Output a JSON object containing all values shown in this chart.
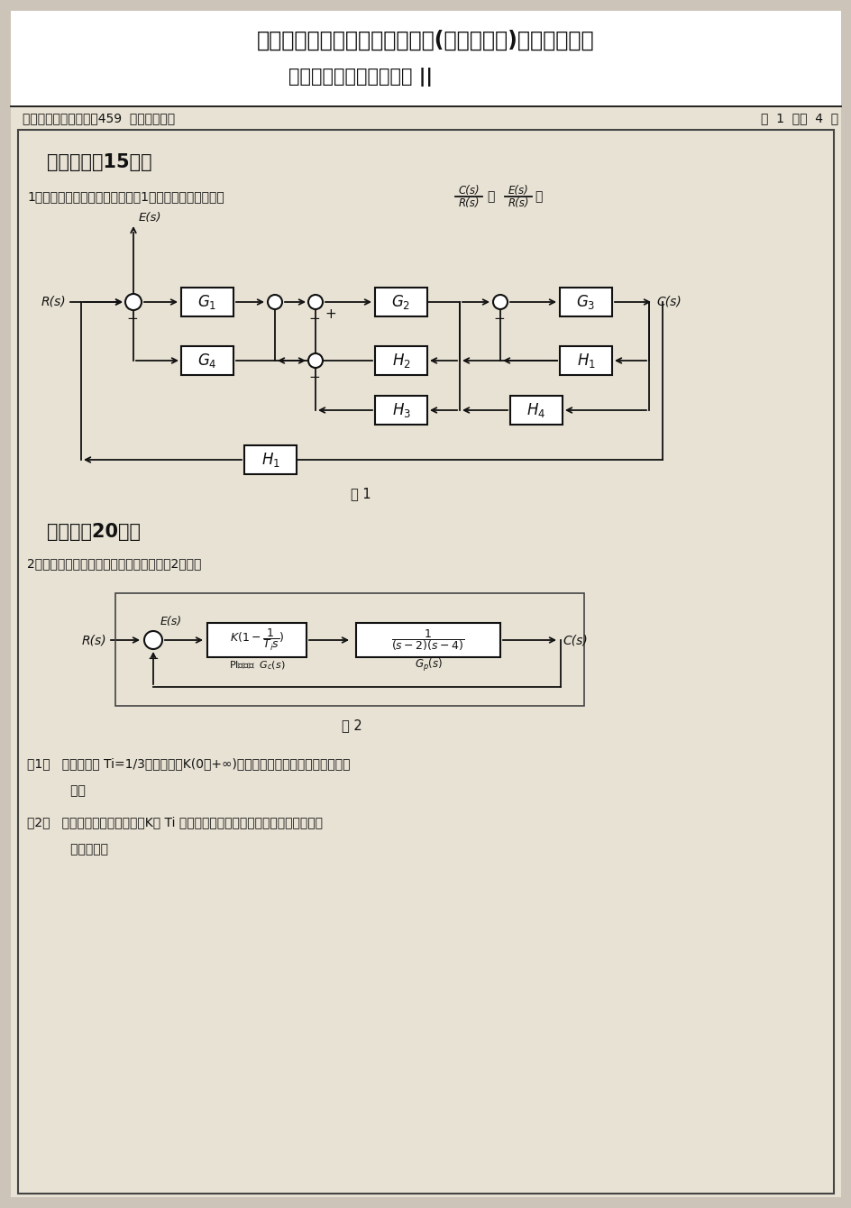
{
  "title_line1": "华东理工大学一九九九年研究生(硕士、博士)入学考试试题",
  "title_line2": "（试题附在考卷内交回） ||",
  "header_left": "考试科目号码及名称：459  自动控制原理",
  "header_right": "第  1  页共  4  页",
  "section1_title": "数学模型（15分）",
  "q1_text1": "1．已知某控制系统的方块图如图1所示，试求出传递函数",
  "q1_frac1": "C(s)\nR(s)",
  "q1_text2": "、",
  "q1_frac2": "E(s)\nR(s)",
  "q1_text3": "。",
  "fig1_label": "图 1",
  "section2_title": "根轨迹（20分）",
  "q2_text": "2．已知某单位负反馈控制系统方块图如图2所示：",
  "fig2_label": "图 2",
  "q2_sub1_a": "（1）   设积分时间",
  "q2_sub1_b": "Ti=1/3",
  "q2_sub1_c": "，试绘制以K（0，+∞）为参数变化时，系统闭环根轨迹",
  "q2_sub1_d": "草图。",
  "q2_sub2_a": "（2）   试用根轨迹方法分析，当K与",
  "q2_sub2_b": "Ti",
  "q2_sub2_c": "分别变化时，对系统的相对稳定性和稳态误",
  "q2_sub2_d": "差的影响。",
  "bg_color": "#ccc4b8",
  "paper_color": "#e8e2d4",
  "line_color": "#111111",
  "text_color": "#111111",
  "paper_border_color": "#555555"
}
